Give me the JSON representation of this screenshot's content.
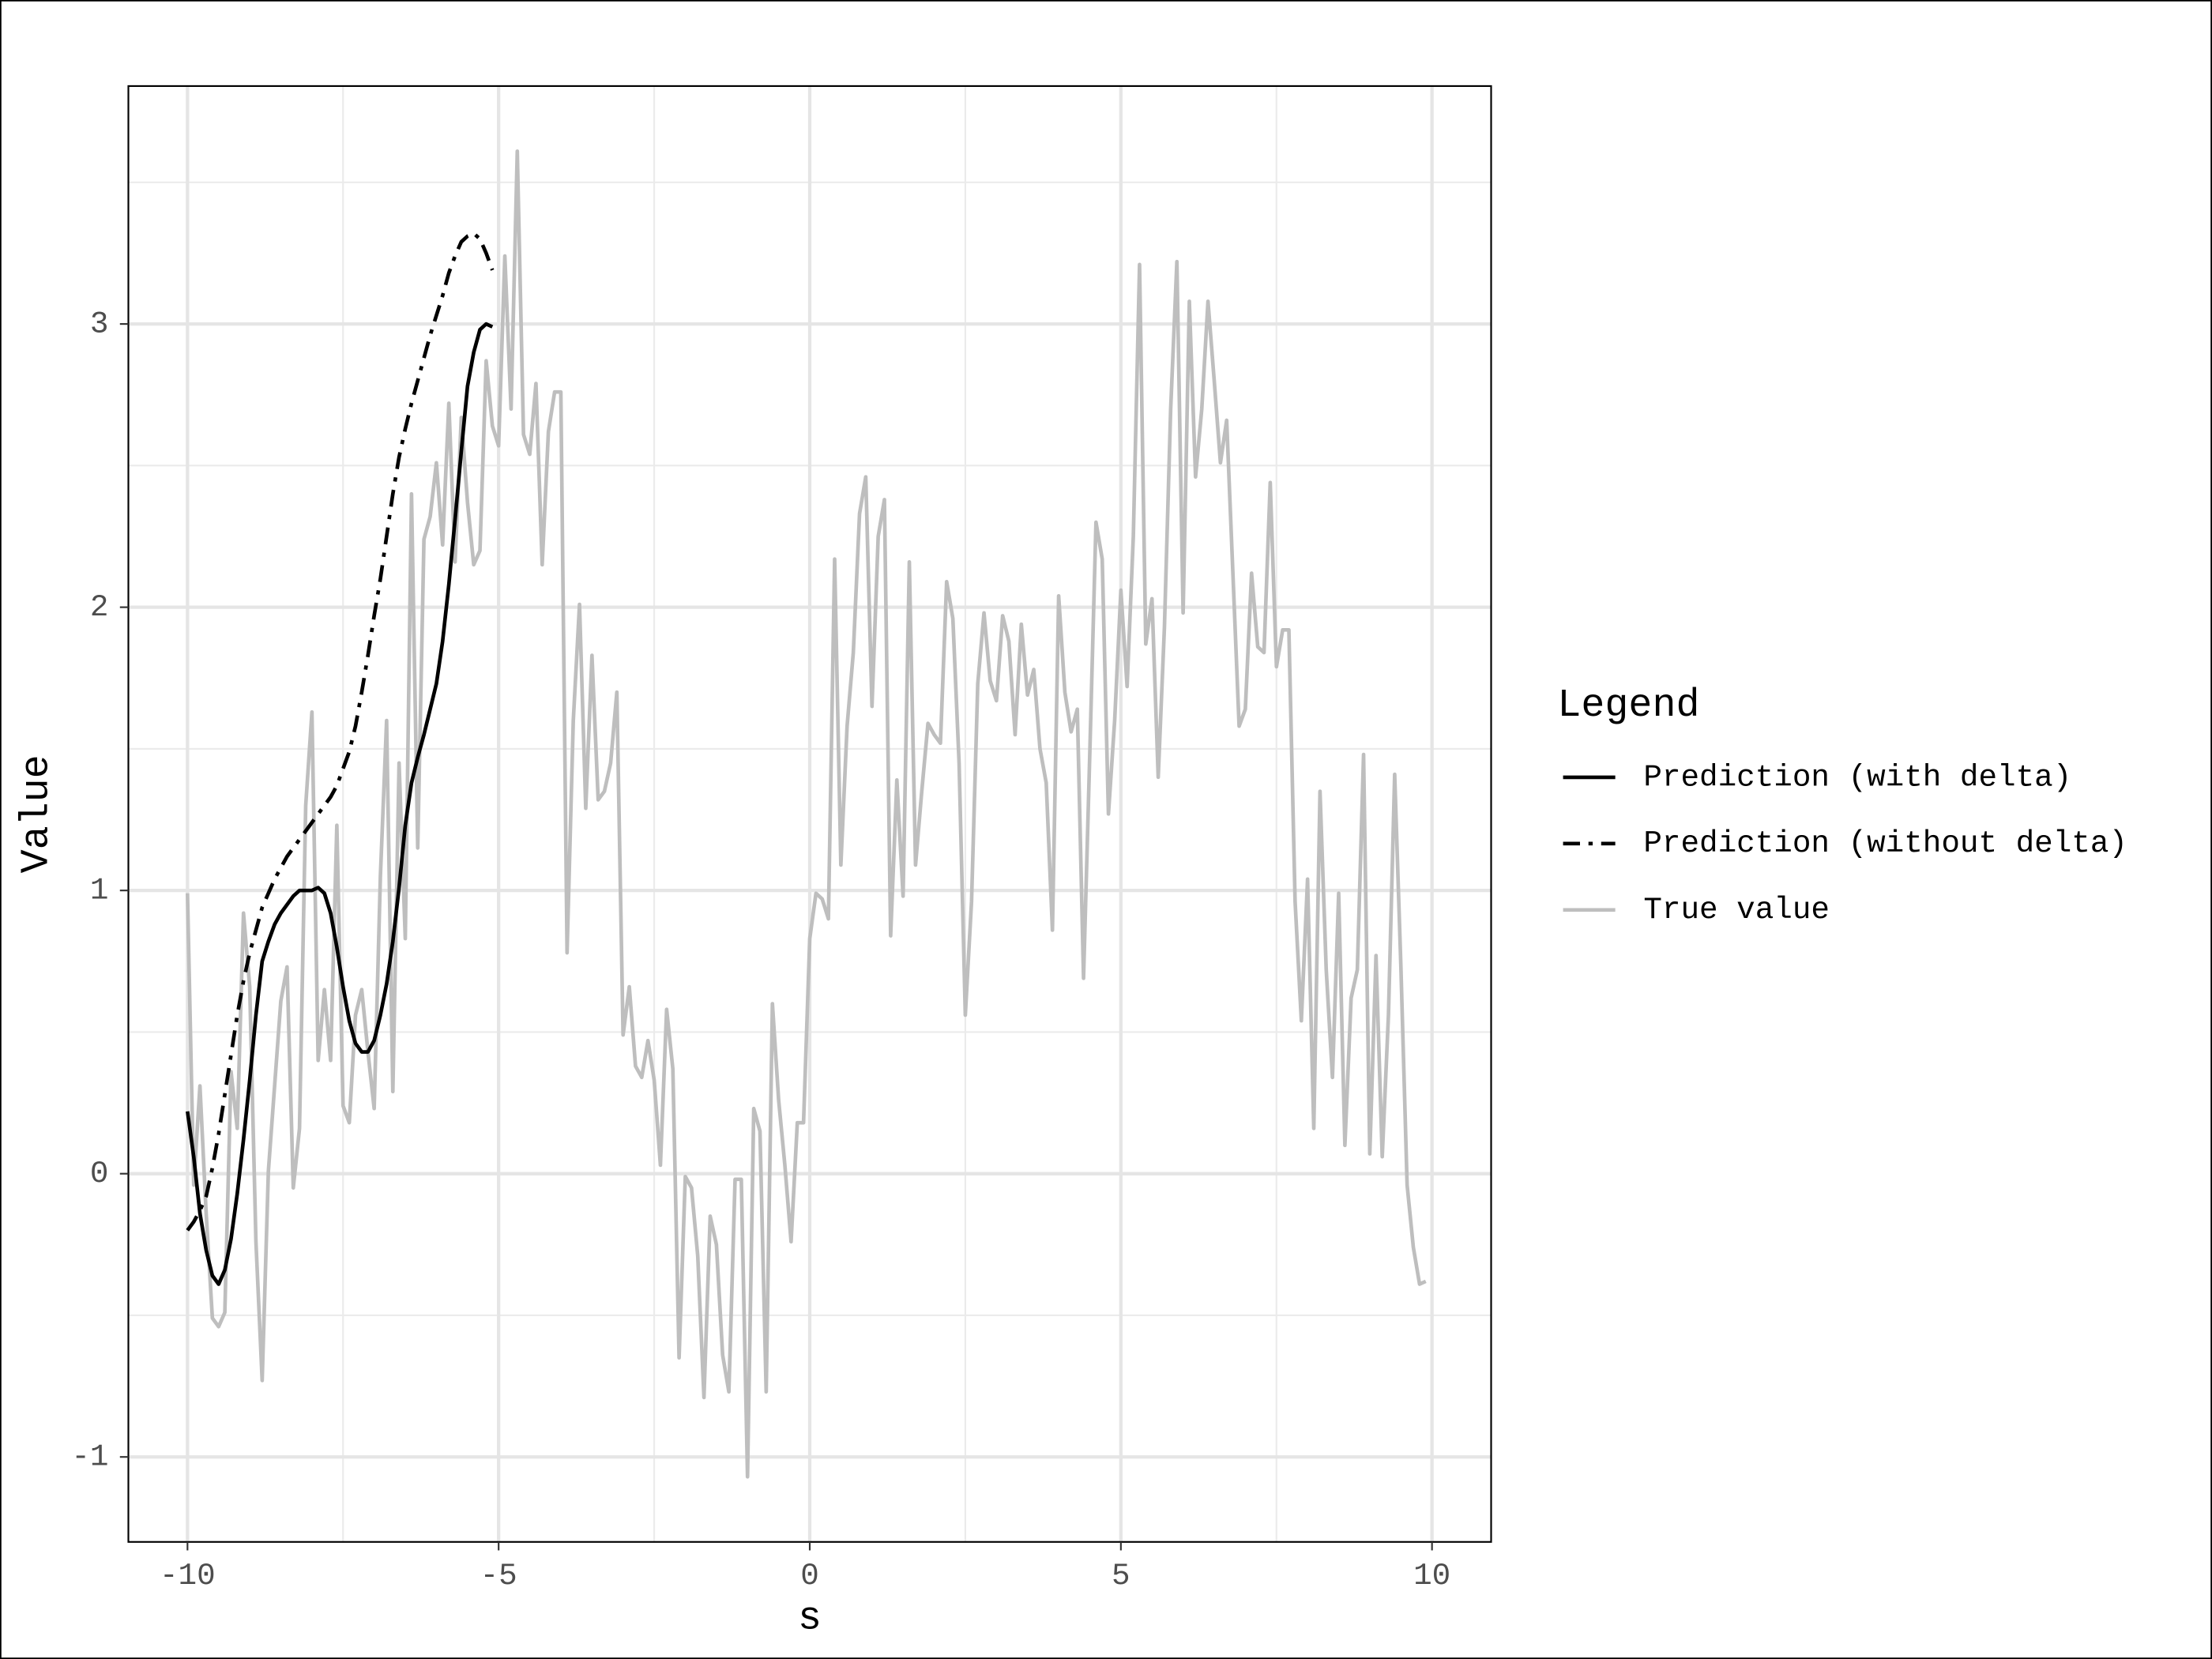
{
  "chart_data": {
    "type": "line",
    "xlabel": "s",
    "ylabel": "Value",
    "legend_title": "Legend",
    "legend": "right",
    "grid": true,
    "minor_grid": true,
    "xlim": [
      -10.95,
      10.95
    ],
    "ylim": [
      -1.3,
      3.84
    ],
    "xticks": [
      -10,
      -5,
      0,
      5,
      10
    ],
    "yticks": [
      -1,
      0,
      1,
      2,
      3
    ],
    "series": [
      {
        "name": "Prediction (with delta)",
        "color": "#000000",
        "dash": "solid",
        "x": [
          -10,
          -9.9,
          -9.8,
          -9.7,
          -9.6,
          -9.5,
          -9.4,
          -9.3,
          -9.2,
          -9.1,
          -9,
          -8.9,
          -8.8,
          -8.7,
          -8.6,
          -8.5,
          -8.4,
          -8.3,
          -8.2,
          -8.1,
          -8,
          -7.9,
          -7.8,
          -7.7,
          -7.6,
          -7.5,
          -7.4,
          -7.3,
          -7.2,
          -7.1,
          -7,
          -6.9,
          -6.8,
          -6.7,
          -6.6,
          -6.5,
          -6.4,
          -6.3,
          -6.2,
          -6.1,
          -6,
          -5.9,
          -5.8,
          -5.7,
          -5.6,
          -5.5,
          -5.4,
          -5.3,
          -5.2,
          -5.1
        ],
        "values": [
          0.22,
          0.06,
          -0.14,
          -0.27,
          -0.36,
          -0.39,
          -0.34,
          -0.23,
          -0.07,
          0.12,
          0.33,
          0.56,
          0.75,
          0.82,
          0.88,
          0.92,
          0.95,
          0.98,
          1.0,
          1.0,
          1.0,
          1.01,
          0.99,
          0.92,
          0.8,
          0.66,
          0.54,
          0.46,
          0.43,
          0.43,
          0.47,
          0.56,
          0.67,
          0.82,
          1.01,
          1.23,
          1.38,
          1.47,
          1.55,
          1.64,
          1.73,
          1.88,
          2.08,
          2.31,
          2.55,
          2.78,
          2.9,
          2.98,
          3.0,
          2.99
        ]
      },
      {
        "name": "Prediction (without delta)",
        "color": "#000000",
        "dash": "dashdot",
        "x": [
          -10,
          -9.9,
          -9.8,
          -9.7,
          -9.6,
          -9.5,
          -9.4,
          -9.3,
          -9.2,
          -9.1,
          -9,
          -8.9,
          -8.8,
          -8.7,
          -8.6,
          -8.5,
          -8.4,
          -8.3,
          -8.2,
          -8.1,
          -8,
          -7.9,
          -7.8,
          -7.7,
          -7.6,
          -7.5,
          -7.4,
          -7.3,
          -7.2,
          -7.1,
          -7,
          -6.9,
          -6.8,
          -6.7,
          -6.6,
          -6.5,
          -6.4,
          -6.3,
          -6.2,
          -6.1,
          -6,
          -5.9,
          -5.8,
          -5.7,
          -5.6,
          -5.5,
          -5.4,
          -5.3,
          -5.2,
          -5.1
        ],
        "values": [
          -0.2,
          -0.17,
          -0.13,
          -0.08,
          0.02,
          0.14,
          0.28,
          0.42,
          0.56,
          0.68,
          0.78,
          0.86,
          0.94,
          0.99,
          1.04,
          1.08,
          1.12,
          1.15,
          1.18,
          1.21,
          1.24,
          1.27,
          1.3,
          1.33,
          1.37,
          1.43,
          1.49,
          1.58,
          1.7,
          1.83,
          1.97,
          2.1,
          2.25,
          2.4,
          2.53,
          2.63,
          2.72,
          2.8,
          2.88,
          2.96,
          3.03,
          3.1,
          3.18,
          3.24,
          3.29,
          3.31,
          3.32,
          3.3,
          3.25,
          3.19
        ]
      },
      {
        "name": "True value",
        "color": "#bebebe",
        "dash": "solid",
        "x": [
          -10,
          -9.9,
          -9.8,
          -9.7,
          -9.6,
          -9.5,
          -9.4,
          -9.3,
          -9.2,
          -9.1,
          -9,
          -8.9,
          -8.8,
          -8.7,
          -8.6,
          -8.5,
          -8.4,
          -8.3,
          -8.2,
          -8.1,
          -8,
          -7.9,
          -7.8,
          -7.7,
          -7.6,
          -7.5,
          -7.4,
          -7.3,
          -7.2,
          -7.1,
          -7,
          -6.9,
          -6.8,
          -6.7,
          -6.6,
          -6.5,
          -6.4,
          -6.3,
          -6.2,
          -6.1,
          -6,
          -5.9,
          -5.8,
          -5.7,
          -5.6,
          -5.5,
          -5.4,
          -5.3,
          -5.2,
          -5.1,
          -5,
          -4.9,
          -4.8,
          -4.7,
          -4.6,
          -4.5,
          -4.4,
          -4.3,
          -4.2,
          -4.1,
          -4,
          -3.9,
          -3.8,
          -3.7,
          -3.6,
          -3.5,
          -3.4,
          -3.3,
          -3.2,
          -3.1,
          -3,
          -2.9,
          -2.8,
          -2.7,
          -2.6,
          -2.5,
          -2.4,
          -2.3,
          -2.2,
          -2.1,
          -2,
          -1.9,
          -1.8,
          -1.7,
          -1.6,
          -1.5,
          -1.4,
          -1.3,
          -1.2,
          -1.1,
          -1,
          -0.9,
          -0.8,
          -0.7,
          -0.6,
          -0.5,
          -0.4,
          -0.3,
          -0.2,
          -0.1,
          0,
          0.1,
          0.2,
          0.3,
          0.4,
          0.5,
          0.6,
          0.7,
          0.8,
          0.9,
          1,
          1.1,
          1.2,
          1.3,
          1.4,
          1.5,
          1.6,
          1.7,
          1.8,
          1.9,
          2,
          2.1,
          2.2,
          2.3,
          2.4,
          2.5,
          2.6,
          2.7,
          2.8,
          2.9,
          3,
          3.1,
          3.2,
          3.3,
          3.4,
          3.5,
          3.6,
          3.7,
          3.8,
          3.9,
          4,
          4.1,
          4.2,
          4.3,
          4.4,
          4.5,
          4.6,
          4.7,
          4.8,
          4.9,
          5,
          5.1,
          5.2,
          5.3,
          5.4,
          5.5,
          5.6,
          5.7,
          5.8,
          5.9,
          6,
          6.1,
          6.2,
          6.3,
          6.4,
          6.5,
          6.6,
          6.7,
          6.8,
          6.9,
          7,
          7.1,
          7.2,
          7.3,
          7.4,
          7.5,
          7.6,
          7.7,
          7.8,
          7.9,
          8,
          8.1,
          8.2,
          8.3,
          8.4,
          8.5,
          8.6,
          8.7,
          8.8,
          8.9,
          9,
          9.1,
          9.2,
          9.3,
          9.4,
          9.5,
          9.6,
          9.7,
          9.8,
          9.9
        ],
        "values": [
          0.99,
          -0.04,
          0.31,
          -0.14,
          -0.51,
          -0.54,
          -0.49,
          0.36,
          0.16,
          0.92,
          0.66,
          -0.24,
          -0.73,
          0.01,
          0.31,
          0.61,
          0.73,
          -0.05,
          0.16,
          1.3,
          1.63,
          0.4,
          0.65,
          0.4,
          1.23,
          0.24,
          0.18,
          0.56,
          0.65,
          0.43,
          0.23,
          1.05,
          1.6,
          0.29,
          1.45,
          0.83,
          2.4,
          1.15,
          2.24,
          2.32,
          2.51,
          2.22,
          2.72,
          2.16,
          2.67,
          2.37,
          2.15,
          2.2,
          2.87,
          2.64,
          2.57,
          3.24,
          2.7,
          3.61,
          2.61,
          2.54,
          2.79,
          2.15,
          2.62,
          2.76,
          2.76,
          0.78,
          1.6,
          2.01,
          1.29,
          1.83,
          1.32,
          1.35,
          1.45,
          1.7,
          0.49,
          0.66,
          0.38,
          0.34,
          0.47,
          0.33,
          0.03,
          0.58,
          0.37,
          -0.65,
          -0.01,
          -0.05,
          -0.29,
          -0.79,
          -0.15,
          -0.25,
          -0.64,
          -0.77,
          -0.02,
          -0.02,
          -1.07,
          0.23,
          0.15,
          -0.77,
          0.6,
          0.26,
          0.03,
          -0.24,
          0.18,
          0.18,
          0.83,
          0.99,
          0.97,
          0.9,
          2.17,
          1.09,
          1.58,
          1.84,
          2.33,
          2.46,
          1.65,
          2.25,
          2.38,
          0.84,
          1.39,
          0.98,
          2.16,
          1.09,
          1.35,
          1.59,
          1.55,
          1.52,
          2.09,
          1.96,
          1.45,
          0.56,
          0.96,
          1.73,
          1.98,
          1.74,
          1.67,
          1.97,
          1.88,
          1.55,
          1.94,
          1.69,
          1.78,
          1.5,
          1.38,
          0.86,
          2.04,
          1.7,
          1.56,
          1.64,
          0.69,
          1.48,
          2.3,
          2.17,
          1.27,
          1.6,
          2.06,
          1.72,
          2.25,
          3.21,
          1.87,
          2.03,
          1.4,
          1.93,
          2.7,
          3.22,
          1.98,
          3.08,
          2.46,
          2.7,
          3.08,
          2.8,
          2.51,
          2.66,
          2.12,
          1.58,
          1.64,
          2.12,
          1.86,
          1.84,
          2.44,
          1.79,
          1.92,
          1.92,
          0.96,
          0.54,
          1.04,
          0.16,
          1.35,
          0.72,
          0.34,
          0.99,
          0.1,
          0.62,
          0.72,
          1.48,
          0.07,
          0.77,
          0.06,
          0.56,
          1.41,
          0.73,
          -0.04,
          -0.26,
          -0.39,
          -0.38
        ]
      }
    ]
  }
}
